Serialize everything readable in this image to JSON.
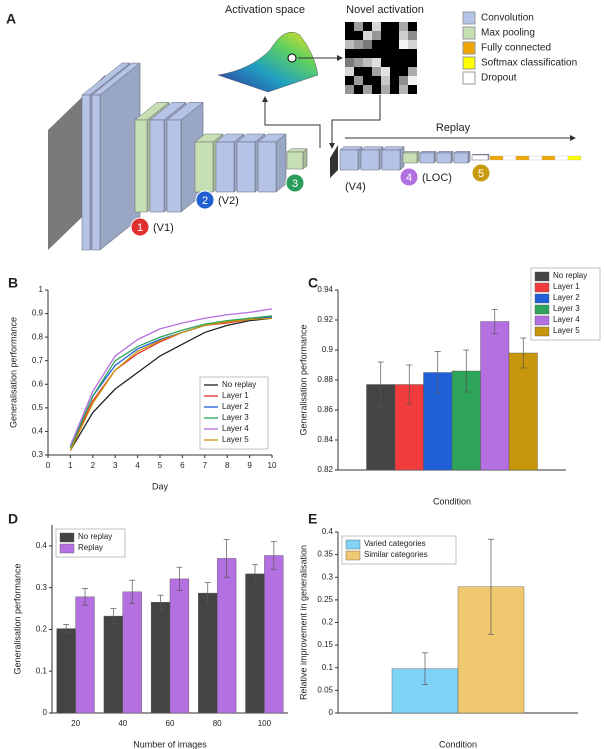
{
  "diagram": {
    "label": "A",
    "activation_space": "Activation space",
    "novel_activation": "Novel activation",
    "legend": [
      "Convolution",
      "Max pooling",
      "Fully connected",
      "Softmax classification",
      "Dropout"
    ],
    "replay": "Replay",
    "stages": [
      {
        "number": "1",
        "name": "(V1)"
      },
      {
        "number": "2",
        "name": "(V2)"
      },
      {
        "number": "3",
        "name": null
      },
      {
        "number": null,
        "name": "(V4)"
      },
      {
        "number": "4",
        "name": "(LOC)"
      },
      {
        "number": "5",
        "name": null
      }
    ]
  },
  "chart_data": [
    {
      "type": "line",
      "label": "B",
      "xlabel": "Day",
      "ylabel": "Generalisation performance",
      "x": [
        1,
        2,
        3,
        4,
        5,
        6,
        7,
        8,
        9,
        10
      ],
      "xlim": [
        0,
        10
      ],
      "xticks": [
        0,
        1,
        2,
        3,
        4,
        5,
        6,
        7,
        8,
        9,
        10
      ],
      "ylim": [
        0.3,
        1
      ],
      "yticks": [
        0.3,
        0.4,
        0.5,
        0.6,
        0.7,
        0.8,
        0.9,
        1
      ],
      "legend": "lower right",
      "series": [
        {
          "name": "No replay",
          "color": "#222222",
          "values": [
            0.32,
            0.48,
            0.58,
            0.65,
            0.72,
            0.77,
            0.82,
            0.85,
            0.87,
            0.88
          ]
        },
        {
          "name": "Layer 1",
          "color": "#e8302a",
          "values": [
            0.33,
            0.53,
            0.66,
            0.73,
            0.78,
            0.82,
            0.85,
            0.86,
            0.875,
            0.885
          ]
        },
        {
          "name": "Layer 2",
          "color": "#1f5fd8",
          "values": [
            0.33,
            0.55,
            0.68,
            0.75,
            0.79,
            0.82,
            0.85,
            0.865,
            0.88,
            0.885
          ]
        },
        {
          "name": "Layer 3",
          "color": "#2ea35a",
          "values": [
            0.33,
            0.55,
            0.7,
            0.76,
            0.8,
            0.83,
            0.855,
            0.87,
            0.88,
            0.89
          ]
        },
        {
          "name": "Layer 4",
          "color": "#b46fe0",
          "values": [
            0.34,
            0.57,
            0.72,
            0.79,
            0.835,
            0.86,
            0.88,
            0.895,
            0.905,
            0.92
          ]
        },
        {
          "name": "Layer 5",
          "color": "#c8960a",
          "values": [
            0.32,
            0.52,
            0.66,
            0.74,
            0.785,
            0.82,
            0.85,
            0.865,
            0.875,
            0.88
          ]
        }
      ]
    },
    {
      "type": "bar",
      "label": "C",
      "xlabel": "Condition",
      "ylabel": "Generalisation performance",
      "categories": [
        null
      ],
      "ylim": [
        0.82,
        0.94
      ],
      "yticks": [
        0.82,
        0.84,
        0.86,
        0.88,
        0.9,
        0.92,
        0.94
      ],
      "legend": "upper right",
      "series": [
        {
          "name": "No replay",
          "color": "#444444",
          "values": [
            0.877
          ],
          "errors": [
            0.015
          ]
        },
        {
          "name": "Layer 1",
          "color": "#f23c3c",
          "values": [
            0.877
          ],
          "errors": [
            0.013
          ]
        },
        {
          "name": "Layer 2",
          "color": "#1f5fd8",
          "values": [
            0.885
          ],
          "errors": [
            0.014
          ]
        },
        {
          "name": "Layer 3",
          "color": "#2ea35a",
          "values": [
            0.886
          ],
          "errors": [
            0.014
          ]
        },
        {
          "name": "Layer 4",
          "color": "#b46fe0",
          "values": [
            0.919
          ],
          "errors": [
            0.008
          ]
        },
        {
          "name": "Layer 5",
          "color": "#c8960a",
          "values": [
            0.898
          ],
          "errors": [
            0.01
          ]
        }
      ]
    },
    {
      "type": "bar",
      "label": "D",
      "xlabel": "Number of images",
      "ylabel": "Generalisation performance",
      "categories": [
        "20",
        "40",
        "60",
        "80",
        "100"
      ],
      "ylim": [
        0,
        0.45
      ],
      "yticks": [
        0,
        0.1,
        0.2,
        0.3,
        0.4
      ],
      "legend": "upper left",
      "series": [
        {
          "name": "No replay",
          "color": "#444444",
          "values": [
            0.202,
            0.232,
            0.265,
            0.287,
            0.333
          ],
          "errors": [
            0.01,
            0.018,
            0.017,
            0.025,
            0.022
          ]
        },
        {
          "name": "Replay",
          "color": "#b46fe0",
          "values": [
            0.278,
            0.29,
            0.321,
            0.37,
            0.377
          ],
          "errors": [
            0.02,
            0.028,
            0.028,
            0.045,
            0.033
          ]
        }
      ]
    },
    {
      "type": "bar",
      "label": "E",
      "xlabel": "Condition",
      "ylabel": "Relative improvement in generalisation",
      "categories": [
        null
      ],
      "ylim": [
        0,
        0.4
      ],
      "yticks": [
        0,
        0.05,
        0.1,
        0.15,
        0.2,
        0.25,
        0.3,
        0.35,
        0.4
      ],
      "legend": "upper left",
      "series": [
        {
          "name": "Varied categories",
          "color": "#7fd3f7",
          "values": [
            0.098
          ],
          "errors": [
            0.035
          ]
        },
        {
          "name": "Similar categories",
          "color": "#f0c870",
          "values": [
            0.279
          ],
          "errors": [
            0.105
          ]
        }
      ]
    }
  ]
}
